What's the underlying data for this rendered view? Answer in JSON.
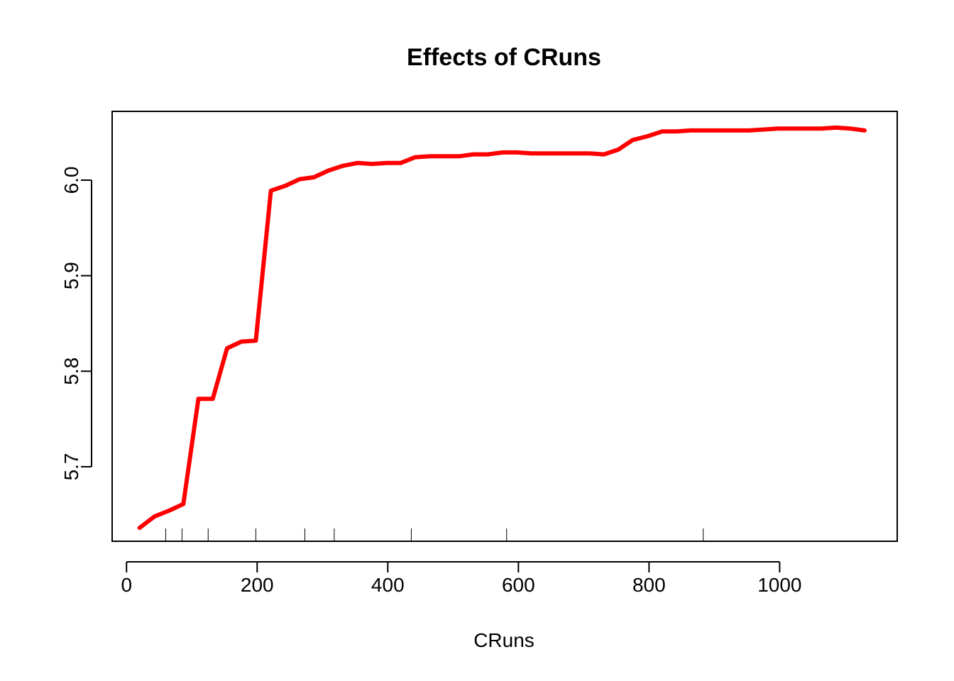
{
  "chart_data": {
    "type": "line",
    "title": "Effects of CRuns",
    "xlabel": "CRuns",
    "ylabel": "",
    "xlim": [
      -22,
      1180
    ],
    "ylim": [
      5.622,
      6.072
    ],
    "x_ticks": [
      0,
      200,
      400,
      600,
      800,
      1000
    ],
    "x_tick_labels": [
      "0",
      "200",
      "400",
      "600",
      "800",
      "1000"
    ],
    "y_ticks": [
      5.7,
      5.8,
      5.9,
      6.0
    ],
    "y_tick_labels": [
      "5.7",
      "5.8",
      "5.9",
      "6.0"
    ],
    "grid": false,
    "legend": "none",
    "series": [
      {
        "color": "#ff0000",
        "x": [
          20,
          43,
          65,
          87,
          110,
          132,
          154,
          176,
          198,
          221,
          243,
          265,
          287,
          309,
          331,
          354,
          376,
          398,
          420,
          442,
          465,
          487,
          509,
          531,
          553,
          576,
          598,
          620,
          642,
          664,
          687,
          709,
          731,
          753,
          775,
          798,
          820,
          842,
          864,
          886,
          909,
          931,
          953,
          975,
          997,
          1020,
          1042,
          1064,
          1086,
          1108,
          1130
        ],
        "y": [
          5.636,
          5.648,
          5.654,
          5.661,
          5.771,
          5.771,
          5.824,
          5.831,
          5.832,
          5.989,
          5.994,
          6.001,
          6.003,
          6.01,
          6.015,
          6.018,
          6.017,
          6.018,
          6.018,
          6.024,
          6.025,
          6.025,
          6.025,
          6.027,
          6.027,
          6.029,
          6.029,
          6.028,
          6.028,
          6.028,
          6.028,
          6.028,
          6.027,
          6.032,
          6.042,
          6.046,
          6.051,
          6.051,
          6.052,
          6.052,
          6.052,
          6.052,
          6.052,
          6.053,
          6.054,
          6.054,
          6.054,
          6.054,
          6.055,
          6.054,
          6.052
        ]
      }
    ],
    "rug": [
      60,
      85,
      125,
      198,
      273,
      318,
      436,
      582,
      883
    ]
  }
}
